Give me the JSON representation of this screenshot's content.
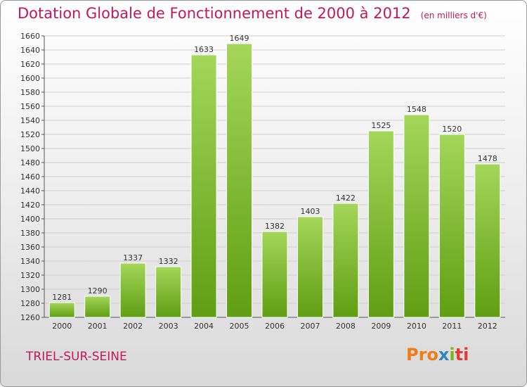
{
  "title": "Dotation Globale de Fonctionnement de 2000 à 2012",
  "unit": "(en milliers d'€)",
  "commune": "TRIEL-SUR-SEINE",
  "logo": {
    "part1": "Pro",
    "part2": "x",
    "part3": "i",
    "part4": "ti",
    "semantic": "proxiti-logo"
  },
  "colors": {
    "title": "#c2185b",
    "bar_light": "#a4d65a",
    "bar_dark": "#5f9e12"
  },
  "chart_data": {
    "type": "bar",
    "title": "Dotation Globale de Fonctionnement de 2000 à 2012",
    "subtitle": "(en milliers d'€)",
    "xlabel": "",
    "ylabel": "",
    "categories": [
      "2000",
      "2001",
      "2002",
      "2003",
      "2004",
      "2005",
      "2006",
      "2007",
      "2008",
      "2009",
      "2010",
      "2011",
      "2012"
    ],
    "values": [
      1281,
      1290,
      1337,
      1332,
      1633,
      1649,
      1382,
      1403,
      1422,
      1525,
      1548,
      1520,
      1478
    ],
    "ylim": [
      1260,
      1660
    ],
    "ytick_step": 20,
    "grid": true
  }
}
